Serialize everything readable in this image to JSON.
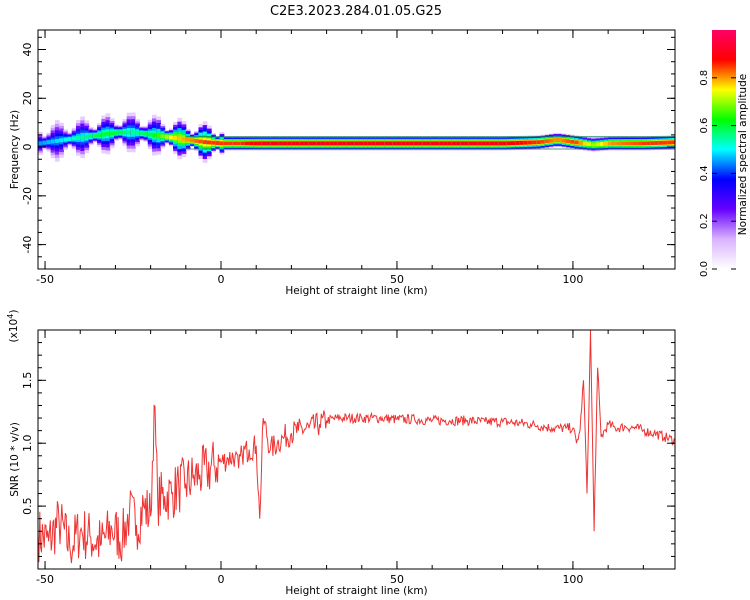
{
  "figure": {
    "title": "C2E3.2023.284.01.05.G25"
  },
  "chart_data": [
    {
      "type": "heatmap",
      "name": "spectrogram",
      "title": "C2E3.2023.284.01.05.G25",
      "xlabel": "Height of straight line (km)",
      "ylabel": "Frequency (Hz)",
      "xlim": [
        -52,
        129
      ],
      "ylim": [
        -50,
        48
      ],
      "x_ticks": [
        -50,
        0,
        50,
        100
      ],
      "y_ticks": [
        -40,
        -20,
        0,
        20,
        40
      ],
      "colorbar": {
        "label": "Normalized spectral amplitude",
        "range": [
          0,
          1
        ],
        "ticks": [
          0.0,
          0.2,
          0.4,
          0.6,
          0.8
        ],
        "colormap": [
          "#ffffff",
          "#d9b3ff",
          "#6600ff",
          "#0000ff",
          "#00ffff",
          "#00ff00",
          "#ffff00",
          "#ff0000",
          "#ff0066"
        ]
      },
      "ridge": {
        "x": [
          -52,
          -45,
          -40,
          -35,
          -30,
          -25,
          -20,
          -15,
          -10,
          -5,
          0,
          5,
          10,
          20,
          40,
          60,
          80,
          90,
          95,
          100,
          105,
          110,
          120,
          129
        ],
        "frequency": [
          1.5,
          3,
          4,
          5,
          6,
          6,
          5,
          4,
          3,
          2,
          1.5,
          1.5,
          1.5,
          1.5,
          1.5,
          1.5,
          1.5,
          2,
          3,
          2,
          1,
          1.5,
          1.5,
          2
        ],
        "amplitude": [
          0.45,
          0.5,
          0.55,
          0.6,
          0.6,
          0.55,
          0.6,
          0.75,
          0.8,
          0.85,
          0.85,
          0.85,
          0.9,
          0.9,
          0.9,
          0.9,
          0.9,
          0.85,
          0.8,
          0.85,
          0.7,
          0.8,
          0.85,
          0.85
        ]
      }
    },
    {
      "type": "line",
      "name": "snr",
      "xlabel": "Height of straight line (km)",
      "ylabel": "SNR (10 * v/v)",
      "y_multiplier": "(x10",
      "y_multiplier_exp": "4",
      "xlim": [
        -52,
        129
      ],
      "ylim": [
        0,
        1.9
      ],
      "x_ticks": [
        -50,
        0,
        50,
        100
      ],
      "y_ticks": [
        0.5,
        1.0,
        1.5
      ],
      "y_tick_labels": [
        "0.5",
        "1.0",
        "1.5"
      ],
      "color": "#ee3333",
      "series": [
        {
          "x": [
            -52,
            -49,
            -46,
            -43,
            -40,
            -37,
            -34,
            -31,
            -28,
            -26,
            -24,
            -22,
            -20,
            -19,
            -18,
            -16,
            -14,
            -12,
            -10,
            -8,
            -6,
            -4,
            -2,
            0,
            2,
            4,
            5,
            6,
            8,
            10,
            11,
            12,
            14,
            16,
            18,
            20,
            22,
            25,
            28,
            30,
            33,
            36,
            40,
            45,
            50,
            55,
            60,
            65,
            70,
            75,
            80,
            85,
            88,
            90,
            92,
            94,
            96,
            98,
            100,
            101,
            102,
            103,
            104,
            105,
            106,
            107,
            108,
            110,
            112,
            115,
            118,
            120,
            123,
            126,
            129
          ],
          "y": [
            0.28,
            0.22,
            0.38,
            0.18,
            0.3,
            0.25,
            0.2,
            0.32,
            0.24,
            0.45,
            0.35,
            0.5,
            0.42,
            1.3,
            0.55,
            0.58,
            0.6,
            0.65,
            0.68,
            0.72,
            0.75,
            0.78,
            0.82,
            0.85,
            0.88,
            0.9,
            0.8,
            0.92,
            0.95,
            0.98,
            0.4,
            1.2,
            0.95,
            1.0,
            1.05,
            1.08,
            1.1,
            1.12,
            1.15,
            1.18,
            1.2,
            1.2,
            1.2,
            1.2,
            1.19,
            1.19,
            1.18,
            1.18,
            1.18,
            1.17,
            1.17,
            1.16,
            1.15,
            1.14,
            1.13,
            1.12,
            1.12,
            1.12,
            1.12,
            1.0,
            1.1,
            1.5,
            0.6,
            1.9,
            0.3,
            1.6,
            1.05,
            1.15,
            1.12,
            1.13,
            1.12,
            1.1,
            1.08,
            1.05,
            1.02
          ]
        }
      ]
    }
  ]
}
